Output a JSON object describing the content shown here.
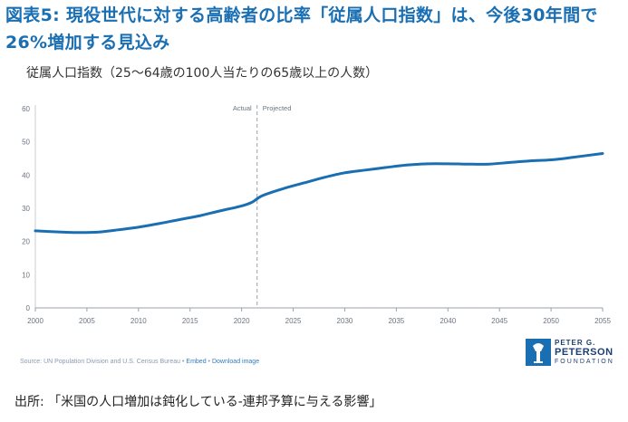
{
  "header": {
    "title": "図表5: 現役世代に対する高齢者の比率「従属人口指数」は、今後30年間で26%増加する見込み",
    "chart_subtitle": "従属人口指数（25〜64歳の100人当たりの65歳以上の人数）"
  },
  "chart_data": {
    "type": "line",
    "title": "",
    "xlabel": "",
    "ylabel": "",
    "xlim": [
      2000,
      2055
    ],
    "ylim": [
      0,
      60
    ],
    "x_ticks": [
      2000,
      2005,
      2010,
      2015,
      2020,
      2025,
      2030,
      2035,
      2040,
      2045,
      2050,
      2055
    ],
    "y_ticks": [
      0,
      10,
      20,
      30,
      40,
      50,
      60
    ],
    "grid": false,
    "divider": {
      "x": 2021.5,
      "labels": [
        "Actual",
        "Projected"
      ]
    },
    "line_color": "#1a6fb3",
    "series": [
      {
        "x": [
          2000,
          2002,
          2004,
          2006,
          2008,
          2010,
          2012,
          2014,
          2016,
          2018,
          2020,
          2021,
          2022,
          2024,
          2026,
          2028,
          2030,
          2032,
          2034,
          2036,
          2038,
          2040,
          2042,
          2044,
          2046,
          2048,
          2050,
          2052,
          2055
        ],
        "y": [
          23.2,
          22.9,
          22.7,
          22.8,
          23.5,
          24.3,
          25.4,
          26.6,
          27.8,
          29.3,
          30.7,
          31.8,
          33.8,
          35.9,
          37.6,
          39.3,
          40.7,
          41.5,
          42.3,
          43.0,
          43.4,
          43.4,
          43.3,
          43.3,
          43.8,
          44.3,
          44.6,
          45.3,
          46.5
        ]
      }
    ]
  },
  "source": {
    "prefix": "Source: UN Population Division and U.S. Census Bureau",
    "sep": "•",
    "embed": "Embed",
    "download": "Download image"
  },
  "logo": {
    "line1": "PETER G.",
    "line2": "PETERSON",
    "line3": "FOUNDATION",
    "color": "#1c3f73"
  },
  "footer": {
    "text": "出所: 「米国の人口増加は鈍化している-連邦予算に与える影響」"
  }
}
